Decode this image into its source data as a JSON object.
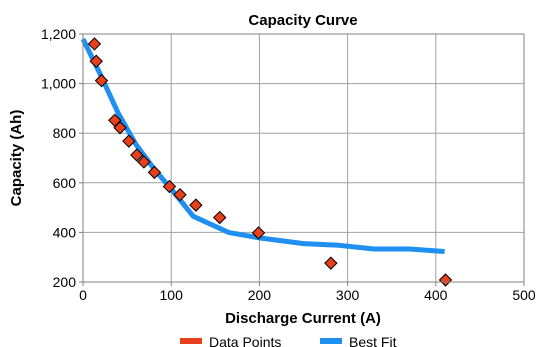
{
  "chart_data": {
    "type": "scatter",
    "title": "Capacity Curve",
    "xlabel": "Discharge Current (A)",
    "ylabel": "Capacity (Ah)",
    "xlim": [
      0,
      500
    ],
    "ylim": [
      200,
      1200
    ],
    "x_ticks": [
      "0",
      "100",
      "200",
      "300",
      "400",
      "500"
    ],
    "y_ticks": [
      "200",
      "400",
      "600",
      "800",
      "1,000",
      "1,200"
    ],
    "grid": true,
    "legend_position": "bottom",
    "series": [
      {
        "name": "Data Points",
        "type": "scatter",
        "marker": "diamond",
        "color": "#e8401c",
        "points": [
          {
            "x": 13,
            "y": 1160
          },
          {
            "x": 15,
            "y": 1090
          },
          {
            "x": 21,
            "y": 1012
          },
          {
            "x": 36,
            "y": 852
          },
          {
            "x": 42,
            "y": 822
          },
          {
            "x": 52,
            "y": 768
          },
          {
            "x": 61,
            "y": 712
          },
          {
            "x": 69,
            "y": 684
          },
          {
            "x": 81,
            "y": 642
          },
          {
            "x": 98,
            "y": 585
          },
          {
            "x": 110,
            "y": 552
          },
          {
            "x": 128,
            "y": 510
          },
          {
            "x": 155,
            "y": 460
          },
          {
            "x": 199,
            "y": 398
          },
          {
            "x": 281,
            "y": 276
          },
          {
            "x": 411,
            "y": 208
          }
        ]
      },
      {
        "name": "Best Fit",
        "type": "line",
        "color": "#1f8ff0",
        "points": [
          {
            "x": 0,
            "y": 1180
          },
          {
            "x": 20,
            "y": 1035
          },
          {
            "x": 40,
            "y": 880
          },
          {
            "x": 60,
            "y": 755
          },
          {
            "x": 80,
            "y": 658
          },
          {
            "x": 100,
            "y": 575
          },
          {
            "x": 125,
            "y": 465
          },
          {
            "x": 165,
            "y": 400
          },
          {
            "x": 200,
            "y": 378
          },
          {
            "x": 250,
            "y": 355
          },
          {
            "x": 290,
            "y": 348
          },
          {
            "x": 330,
            "y": 333
          },
          {
            "x": 370,
            "y": 333
          },
          {
            "x": 410,
            "y": 323
          }
        ]
      }
    ]
  }
}
